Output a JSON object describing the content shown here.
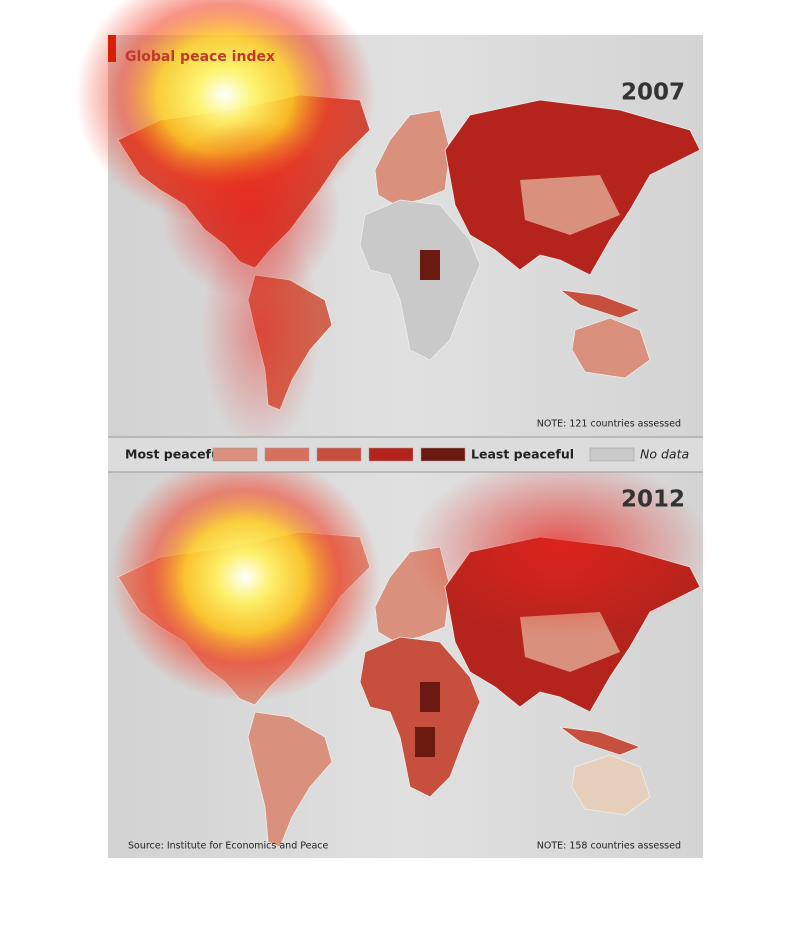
{
  "header": {
    "title": "Global peace index"
  },
  "maps": [
    {
      "year": "2007",
      "note": "NOTE: 121 countries assessed"
    },
    {
      "year": "2012",
      "note": "NOTE: 158 countries assessed"
    }
  ],
  "legend": {
    "low_label": "Most peaceful",
    "high_label": "Least peaceful",
    "no_data_label": "No data",
    "colors": [
      "#d9907c",
      "#d8705f",
      "#c6503d",
      "#b5241c",
      "#6a1a10"
    ],
    "no_data_color": "#c9c9c9"
  },
  "source": "Source: Institute for Economics and Peace"
}
